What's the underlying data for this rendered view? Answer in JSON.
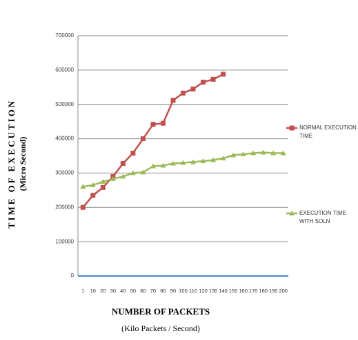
{
  "chart_data": {
    "type": "line",
    "xlabel": "NUMBER OF PACKETS",
    "xlabel_unit": "(Kilo Packets / Second)",
    "ylabel": "TIME OF EXECUTION",
    "ylabel_unit": "(Micro Second)",
    "categories": [
      "1",
      "10",
      "20",
      "30",
      "40",
      "50",
      "60",
      "70",
      "80",
      "90",
      "100",
      "110",
      "120",
      "130",
      "140",
      "150",
      "160",
      "170",
      "180",
      "190",
      "200"
    ],
    "series": [
      {
        "name": "NORMAL EXECUTION TIME",
        "color": "#c0504d",
        "marker": "square",
        "values": [
          200000,
          235000,
          258000,
          290000,
          328000,
          358000,
          400000,
          442000,
          445000,
          512000,
          533000,
          545000,
          565000,
          573000,
          588000,
          null,
          null,
          null,
          null,
          null,
          null
        ]
      },
      {
        "name": "EXECUTION TIME WITH SOLN",
        "color": "#9bbb59",
        "marker": "triangle",
        "values": [
          260000,
          265000,
          275000,
          283000,
          290000,
          300000,
          302000,
          320000,
          322000,
          328000,
          330000,
          332000,
          335000,
          338000,
          343000,
          352000,
          355000,
          358000,
          360000,
          358000,
          358000
        ]
      }
    ],
    "ylim": [
      0,
      700000
    ],
    "yticks": [
      0,
      100000,
      200000,
      300000,
      400000,
      500000,
      600000,
      700000
    ],
    "grid": true,
    "legend": "right"
  }
}
